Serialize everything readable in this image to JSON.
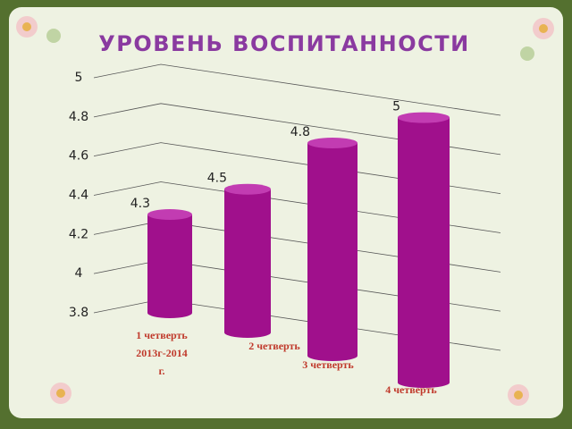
{
  "chart_data": {
    "type": "bar",
    "title": "УРОВЕНЬ ВОСПИТАННОСТИ",
    "categories": [
      "1 четверть 2013г-2014 г.",
      "2 четверть",
      "3 четверть",
      "4 четверть"
    ],
    "values": [
      4.3,
      4.5,
      4.8,
      5
    ],
    "color": "#a0108c",
    "ylim": [
      3.8,
      5
    ],
    "yticks": [
      3.8,
      4,
      4.2,
      4.4,
      4.6,
      4.8,
      5
    ],
    "grid": true
  }
}
